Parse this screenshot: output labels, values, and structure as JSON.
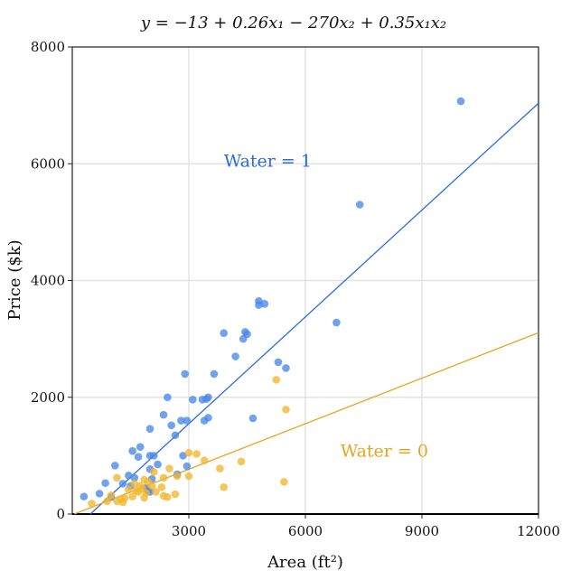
{
  "chart_data": {
    "type": "scatter",
    "title": "y = −13 + 0.26x₁ − 270x₂ + 0.35x₁x₂",
    "xlabel": "Area (ft²)",
    "ylabel": "Price ($k)",
    "xlim": [
      0,
      12000
    ],
    "ylim": [
      0,
      8000
    ],
    "xticks": [
      3000,
      6000,
      9000,
      12000
    ],
    "yticks": [
      0,
      2000,
      4000,
      6000,
      8000
    ],
    "xtick_labels": [
      "3000",
      "6000",
      "9000",
      "12000"
    ],
    "ytick_labels": [
      "0",
      "2000",
      "4000",
      "6000",
      "8000"
    ],
    "grid": true,
    "colors": {
      "water1": "#4a86e8",
      "water0": "#f1b730",
      "line1": "#2a6be2",
      "line0": "#e8a41c"
    },
    "series": [
      {
        "name": "Water = 1",
        "label": "Water = 1",
        "color_key": "water1",
        "points": [
          [
            10000,
            7070
          ],
          [
            7400,
            5300
          ],
          [
            6800,
            3280
          ],
          [
            4800,
            3650
          ],
          [
            4800,
            3580
          ],
          [
            4950,
            3600
          ],
          [
            3900,
            3100
          ],
          [
            4450,
            3120
          ],
          [
            4500,
            3080
          ],
          [
            4400,
            3000
          ],
          [
            4200,
            2700
          ],
          [
            5300,
            2600
          ],
          [
            5500,
            2500
          ],
          [
            2900,
            2400
          ],
          [
            3650,
            2400
          ],
          [
            2450,
            2000
          ],
          [
            3100,
            1960
          ],
          [
            3350,
            1960
          ],
          [
            3450,
            1970
          ],
          [
            3500,
            2000
          ],
          [
            2350,
            1700
          ],
          [
            3500,
            1650
          ],
          [
            4650,
            1640
          ],
          [
            2800,
            1600
          ],
          [
            2950,
            1600
          ],
          [
            3400,
            1600
          ],
          [
            2550,
            1520
          ],
          [
            2000,
            1460
          ],
          [
            2650,
            1350
          ],
          [
            1750,
            1150
          ],
          [
            1550,
            1080
          ],
          [
            2000,
            1000
          ],
          [
            2100,
            1000
          ],
          [
            1700,
            980
          ],
          [
            2850,
            1000
          ],
          [
            2200,
            850
          ],
          [
            1100,
            830
          ],
          [
            2950,
            820
          ],
          [
            2000,
            770
          ],
          [
            2700,
            680
          ],
          [
            1450,
            660
          ],
          [
            1600,
            620
          ],
          [
            850,
            530
          ],
          [
            1300,
            520
          ],
          [
            1950,
            400
          ],
          [
            2000,
            380
          ],
          [
            1900,
            450
          ],
          [
            700,
            350
          ],
          [
            1000,
            290
          ],
          [
            300,
            300
          ],
          [
            1500,
            480
          ],
          [
            2050,
            600
          ]
        ]
      },
      {
        "name": "Water = 0",
        "label": "Water = 0",
        "color_key": "water0",
        "points": [
          [
            5250,
            2300
          ],
          [
            5500,
            1790
          ],
          [
            3000,
            1050
          ],
          [
            3200,
            1030
          ],
          [
            3400,
            920
          ],
          [
            4350,
            900
          ],
          [
            3800,
            780
          ],
          [
            2500,
            780
          ],
          [
            2100,
            720
          ],
          [
            2700,
            650
          ],
          [
            3000,
            650
          ],
          [
            2350,
            620
          ],
          [
            1850,
            590
          ],
          [
            1150,
            620
          ],
          [
            1950,
            550
          ],
          [
            5450,
            550
          ],
          [
            3900,
            460
          ],
          [
            1600,
            520
          ],
          [
            1750,
            480
          ],
          [
            2300,
            460
          ],
          [
            1800,
            440
          ],
          [
            1900,
            360
          ],
          [
            2150,
            380
          ],
          [
            2650,
            340
          ],
          [
            2350,
            310
          ],
          [
            1550,
            300
          ],
          [
            2450,
            290
          ],
          [
            1700,
            380
          ],
          [
            1850,
            280
          ],
          [
            1350,
            270
          ],
          [
            1250,
            250
          ],
          [
            1000,
            320
          ],
          [
            900,
            220
          ],
          [
            500,
            180
          ],
          [
            1150,
            220
          ],
          [
            1300,
            200
          ],
          [
            1450,
            420
          ],
          [
            2050,
            480
          ],
          [
            1650,
            400
          ]
        ]
      }
    ],
    "fit_lines": [
      {
        "name": "Water = 1",
        "color_key": "line1",
        "x": [
          0,
          12000
        ],
        "y": [
          -283,
          7037
        ]
      },
      {
        "name": "Water = 0",
        "color_key": "line0",
        "x": [
          0,
          12000
        ],
        "y": [
          -13,
          3107
        ]
      }
    ],
    "annotations": [
      {
        "text": "Water = 1",
        "x": 3900,
        "y": 5950,
        "color_key": "line1"
      },
      {
        "text": "Water = 0",
        "x": 6900,
        "y": 980,
        "color_key": "line0"
      }
    ]
  }
}
